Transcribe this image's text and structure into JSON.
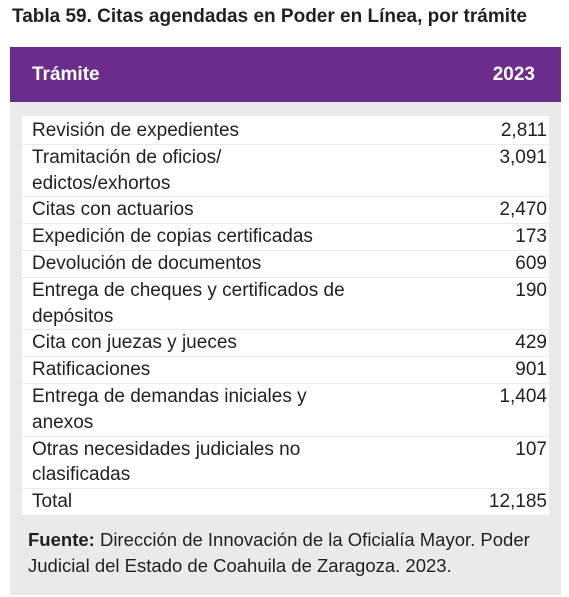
{
  "title": "Tabla 59. Citas agendadas en Poder en Línea, por trámite",
  "header": {
    "col1": "Trámite",
    "col2": "2023"
  },
  "rows": [
    {
      "name": "Revisión de expedientes",
      "value": "2,811"
    },
    {
      "name": "Tramitación de oficios/ edictos/exhortos",
      "value": "3,091"
    },
    {
      "name": "Citas con actuarios",
      "value": "2,470"
    },
    {
      "name": "Expedición de copias certificadas",
      "value": "173"
    },
    {
      "name": "Devolución de documentos",
      "value": "609"
    },
    {
      "name": "Entrega de cheques y certificados de depósitos",
      "value": "190"
    },
    {
      "name": "Cita con juezas y jueces",
      "value": "429"
    },
    {
      "name": "Ratificaciones",
      "value": "901"
    },
    {
      "name": "Entrega de demandas iniciales y anexos",
      "value": "1,404"
    },
    {
      "name": "Otras necesidades judiciales no clasificadas",
      "value": "107"
    },
    {
      "name": "Total",
      "value": "12,185"
    }
  ],
  "source": {
    "label": "Fuente:",
    "text": "Dirección de Innovación de la Oficialía Mayor. Poder Judicial del Estado de Coahuila de Zaragoza. 2023."
  }
}
